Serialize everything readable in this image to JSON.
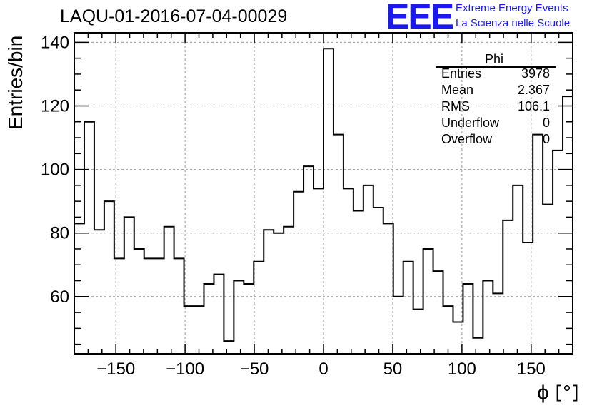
{
  "header": {
    "run_id": "LAQU-01-2016-07-04-00029",
    "logo_letters": "EEE",
    "logo_line1": "Extreme Energy Events",
    "logo_line2": "La Scienza nelle Scuole"
  },
  "stats": {
    "title": "Phi",
    "rows": [
      {
        "name": "Entries",
        "value": "3978"
      },
      {
        "name": "Mean",
        "value": "2.367"
      },
      {
        "name": "RMS",
        "value": "106.1"
      },
      {
        "name": "Underflow",
        "value": "0"
      },
      {
        "name": "Overflow",
        "value": "0"
      }
    ]
  },
  "colors": {
    "logo": "#1a1aee",
    "grid": "#999999",
    "line": "#000000"
  },
  "chart_data": {
    "type": "histogram",
    "title": "LAQU-01-2016-07-04-00029",
    "xlabel": "ϕ [°]",
    "ylabel": "Entries/bin",
    "xlim": [
      -180,
      180
    ],
    "ylim": [
      42,
      143
    ],
    "bin_width": 7.2,
    "x_ticks": [
      -150,
      -100,
      -50,
      0,
      50,
      100,
      150
    ],
    "x_tick_labels": [
      "−150",
      "−100",
      "−50",
      "0",
      "50",
      "100",
      "150"
    ],
    "y_ticks": [
      60,
      80,
      100,
      120,
      140
    ],
    "y_tick_labels": [
      "60",
      "80",
      "100",
      "120",
      "140"
    ],
    "grid": true,
    "values": [
      83,
      115,
      81,
      90,
      72,
      85,
      75,
      72,
      72,
      82,
      72,
      57,
      57,
      64,
      67,
      46,
      65,
      64,
      71,
      81,
      80,
      82,
      93,
      101,
      94,
      138,
      111,
      94,
      87,
      95,
      88,
      83,
      60,
      71,
      56,
      75,
      68,
      57,
      52,
      64,
      47,
      65,
      61,
      84,
      95,
      77,
      111,
      89,
      106,
      123
    ]
  }
}
